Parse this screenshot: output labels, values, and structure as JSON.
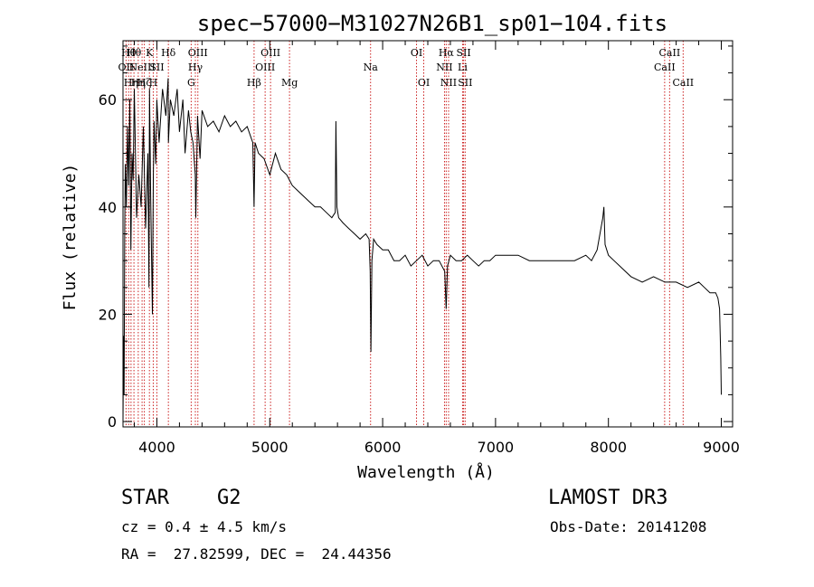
{
  "chart_data": {
    "type": "line",
    "title": "spec−57000−M31027N26B1_sp01−104.fits",
    "xlabel": "Wavelength (Å)",
    "ylabel": "Flux (relative)",
    "xlim": [
      3700,
      9100
    ],
    "ylim": [
      -1,
      71
    ],
    "x_ticks": [
      4000,
      5000,
      6000,
      7000,
      8000,
      9000
    ],
    "y_ticks": [
      0,
      20,
      40,
      60
    ],
    "series": [
      {
        "name": "spectrum",
        "color": "#000000",
        "x": [
          3700,
          3705,
          3710,
          3715,
          3720,
          3730,
          3740,
          3750,
          3760,
          3770,
          3780,
          3790,
          3800,
          3820,
          3840,
          3860,
          3880,
          3900,
          3920,
          3930,
          3935,
          3945,
          3960,
          3968,
          3975,
          3990,
          4000,
          4020,
          4050,
          4080,
          4100,
          4102,
          4120,
          4150,
          4180,
          4200,
          4230,
          4250,
          4280,
          4300,
          4320,
          4340,
          4345,
          4360,
          4383,
          4400,
          4450,
          4500,
          4550,
          4600,
          4650,
          4700,
          4750,
          4800,
          4850,
          4861,
          4870,
          4900,
          4950,
          5000,
          5050,
          5100,
          5150,
          5200,
          5250,
          5300,
          5350,
          5400,
          5450,
          5500,
          5550,
          5580,
          5586,
          5595,
          5610,
          5650,
          5700,
          5750,
          5800,
          5850,
          5880,
          5890,
          5896,
          5905,
          5920,
          5950,
          6000,
          6050,
          6100,
          6150,
          6200,
          6250,
          6300,
          6350,
          6400,
          6450,
          6500,
          6550,
          6563,
          6575,
          6600,
          6650,
          6700,
          6750,
          6800,
          6850,
          6900,
          6950,
          7000,
          7100,
          7200,
          7300,
          7400,
          7500,
          7600,
          7700,
          7800,
          7850,
          7900,
          7950,
          7960,
          7970,
          8000,
          8050,
          8100,
          8150,
          8200,
          8300,
          8400,
          8500,
          8600,
          8700,
          8800,
          8850,
          8900,
          8950,
          8970,
          8985,
          8995,
          9000
        ],
        "y": [
          0,
          16,
          5,
          35,
          48,
          40,
          55,
          44,
          60,
          32,
          50,
          45,
          62,
          38,
          46,
          40,
          55,
          36,
          50,
          25,
          62,
          42,
          20,
          45,
          56,
          48,
          60,
          52,
          62,
          57,
          64,
          52,
          60,
          57,
          62,
          54,
          60,
          50,
          58,
          54,
          52,
          46,
          38,
          57,
          49,
          58,
          55,
          56,
          54,
          57,
          55,
          56,
          54,
          55,
          52,
          40,
          52,
          50,
          49,
          46,
          50,
          47,
          46,
          44,
          43,
          42,
          41,
          40,
          40,
          39,
          38,
          39,
          56,
          40,
          38,
          37,
          36,
          35,
          34,
          35,
          34,
          28,
          13,
          30,
          34,
          33,
          32,
          32,
          30,
          30,
          31,
          29,
          30,
          31,
          29,
          30,
          30,
          28,
          21,
          29,
          31,
          30,
          30,
          31,
          30,
          29,
          30,
          30,
          31,
          31,
          31,
          30,
          30,
          30,
          30,
          30,
          31,
          30,
          32,
          38,
          40,
          33,
          31,
          30,
          29,
          28,
          27,
          26,
          27,
          26,
          26,
          25,
          26,
          25,
          24,
          24,
          23,
          21,
          12,
          5
        ]
      }
    ],
    "lines": [
      {
        "wavelength": 3727,
        "label": "OII",
        "row": 2
      },
      {
        "wavelength": 3750,
        "label": "Hθ",
        "row": 1
      },
      {
        "wavelength": 3771,
        "label": "Hη",
        "row": 3
      },
      {
        "wavelength": 3797,
        "label": "Hθ",
        "row": 1
      },
      {
        "wavelength": 3835,
        "label": "Hη",
        "row": 3
      },
      {
        "wavelength": 3869,
        "label": "NeIII",
        "row": 2
      },
      {
        "wavelength": 3889,
        "label": "Hζ",
        "row": 3
      },
      {
        "wavelength": 3934,
        "label": "K",
        "row": 1
      },
      {
        "wavelength": 3968,
        "label": "H",
        "row": 3
      },
      {
        "wavelength": 4000,
        "label": "SII",
        "row": 2
      },
      {
        "wavelength": 4102,
        "label": "Hδ",
        "row": 1
      },
      {
        "wavelength": 4304,
        "label": "G",
        "row": 3
      },
      {
        "wavelength": 4341,
        "label": "Hγ",
        "row": 2
      },
      {
        "wavelength": 4363,
        "label": "OIII",
        "row": 1
      },
      {
        "wavelength": 4861,
        "label": "Hβ",
        "row": 3
      },
      {
        "wavelength": 4959,
        "label": "OIII",
        "row": 2
      },
      {
        "wavelength": 5007,
        "label": "OIII",
        "row": 1
      },
      {
        "wavelength": 5175,
        "label": "Mg",
        "row": 3
      },
      {
        "wavelength": 5893,
        "label": "Na",
        "row": 2
      },
      {
        "wavelength": 6300,
        "label": "OI",
        "row": 1
      },
      {
        "wavelength": 6364,
        "label": "OI",
        "row": 3
      },
      {
        "wavelength": 6548,
        "label": "NII",
        "row": 2
      },
      {
        "wavelength": 6563,
        "label": "Hα",
        "row": 1
      },
      {
        "wavelength": 6584,
        "label": "NII",
        "row": 3
      },
      {
        "wavelength": 6708,
        "label": "Li",
        "row": 2
      },
      {
        "wavelength": 6717,
        "label": "SII",
        "row": 1
      },
      {
        "wavelength": 6731,
        "label": "SII",
        "row": 3
      },
      {
        "wavelength": 8498,
        "label": "CaII",
        "row": 2
      },
      {
        "wavelength": 8542,
        "label": "CaII",
        "row": 1
      },
      {
        "wavelength": 8662,
        "label": "CaII",
        "row": 3
      }
    ]
  },
  "info": {
    "object_class": "STAR",
    "subclass": "G2",
    "cz": "cz = 0.4 ± 4.5 km/s",
    "radec": "RA =  27.82599, DEC =  24.44356",
    "survey": "LAMOST DR3",
    "obs_date": "Obs-Date: 20141208"
  },
  "colors": {
    "line_marker": "#cc2222",
    "spectrum": "#000000"
  }
}
